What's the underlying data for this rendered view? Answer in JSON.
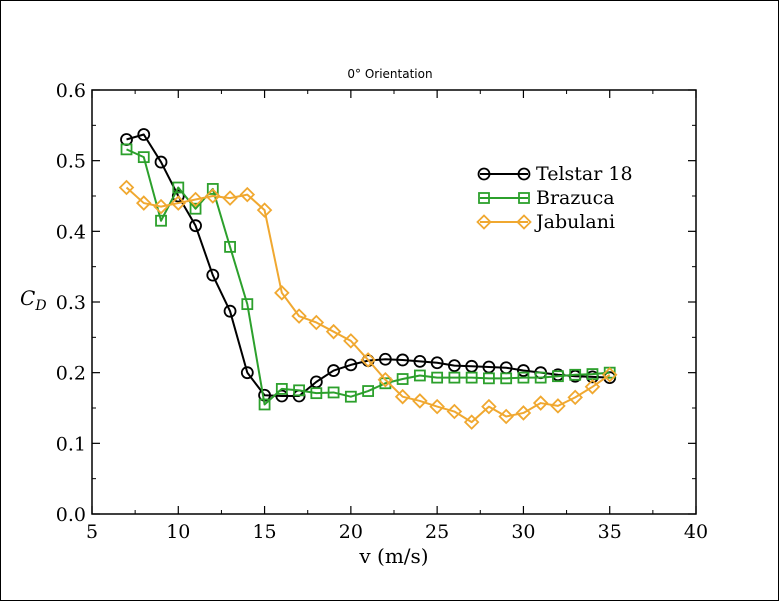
{
  "chart_data": {
    "type": "line",
    "title": "0° Orientation",
    "xlabel": "v (m/s)",
    "ylabel": "C_D",
    "xlim": [
      5,
      40
    ],
    "ylim": [
      0.0,
      0.6
    ],
    "xticks": [
      5,
      10,
      15,
      20,
      25,
      30,
      35,
      40
    ],
    "yticks": [
      "0.0",
      "0.1",
      "0.2",
      "0.3",
      "0.4",
      "0.5",
      "0.6"
    ],
    "grid": false,
    "legend_position": "top-right",
    "series": [
      {
        "name": "Telstar 18",
        "color": "#000000",
        "marker": "circle",
        "x": [
          7,
          8,
          9,
          10,
          11,
          12,
          13,
          14,
          15,
          16,
          17,
          18,
          19,
          20,
          21,
          22,
          23,
          24,
          25,
          26,
          27,
          28,
          29,
          30,
          31,
          32,
          33,
          34,
          35
        ],
        "y": [
          0.53,
          0.537,
          0.498,
          0.45,
          0.408,
          0.338,
          0.287,
          0.2,
          0.168,
          0.167,
          0.167,
          0.187,
          0.203,
          0.211,
          0.217,
          0.219,
          0.218,
          0.216,
          0.214,
          0.21,
          0.209,
          0.208,
          0.207,
          0.203,
          0.2,
          0.197,
          0.195,
          0.194,
          0.193
        ]
      },
      {
        "name": "Brazuca",
        "color": "#2ca02c",
        "marker": "square",
        "x": [
          7,
          8,
          9,
          10,
          11,
          12,
          13,
          14,
          15,
          16,
          17,
          18,
          19,
          20,
          21,
          22,
          23,
          24,
          25,
          26,
          27,
          28,
          29,
          30,
          31,
          32,
          33,
          34,
          35
        ],
        "y": [
          0.516,
          0.505,
          0.415,
          0.462,
          0.432,
          0.46,
          0.378,
          0.297,
          0.155,
          0.177,
          0.175,
          0.171,
          0.172,
          0.166,
          0.174,
          0.185,
          0.191,
          0.196,
          0.193,
          0.193,
          0.193,
          0.192,
          0.192,
          0.193,
          0.193,
          0.195,
          0.197,
          0.198,
          0.2
        ]
      },
      {
        "name": "Jabulani",
        "color": "#f0a830",
        "marker": "diamond",
        "x": [
          7,
          8,
          9,
          10,
          11,
          12,
          13,
          14,
          15,
          16,
          17,
          18,
          19,
          20,
          21,
          22,
          23,
          24,
          25,
          26,
          27,
          28,
          29,
          30,
          31,
          32,
          33,
          34,
          35
        ],
        "y": [
          0.462,
          0.44,
          0.435,
          0.44,
          0.445,
          0.45,
          0.447,
          0.452,
          0.43,
          0.313,
          0.28,
          0.271,
          0.258,
          0.245,
          0.218,
          0.19,
          0.166,
          0.16,
          0.152,
          0.145,
          0.13,
          0.152,
          0.138,
          0.143,
          0.157,
          0.153,
          0.165,
          0.18,
          0.197
        ]
      }
    ]
  }
}
